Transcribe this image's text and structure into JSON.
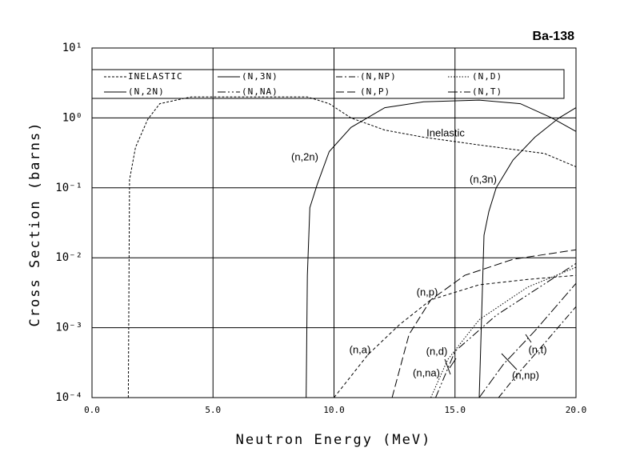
{
  "chart_data": {
    "type": "line",
    "title": "Ba-138",
    "x_label": "Neutron Energy (MeV)",
    "y_label": "Cross Section (barns)",
    "log_y": true,
    "grid": true,
    "xlim": [
      0,
      20
    ],
    "xticks": [
      {
        "value": 0,
        "label": "0.0"
      },
      {
        "value": 5,
        "label": "5.0"
      },
      {
        "value": 10,
        "label": "10.0"
      },
      {
        "value": 15,
        "label": "15.0"
      },
      {
        "value": 20,
        "label": "20.0"
      }
    ],
    "ylim": [
      0.0001,
      10
    ],
    "yticks": [
      {
        "value": 0.0001,
        "label": "10⁻⁴"
      },
      {
        "value": 0.001,
        "label": "10⁻³"
      },
      {
        "value": 0.01,
        "label": "10⁻²"
      },
      {
        "value": 0.1,
        "label": "10⁻¹"
      },
      {
        "value": 1,
        "label": "10⁰"
      },
      {
        "value": 10,
        "label": "10¹"
      }
    ],
    "series": [
      {
        "name": "INELASTIC",
        "color": "#000000",
        "dash": "3,2",
        "x": [
          1.5,
          1.55,
          1.8,
          2.3,
          2.8,
          4.1,
          6.1,
          8.9,
          9.8,
          10.7,
          12.1,
          13.7,
          16,
          18.7,
          20
        ],
        "values": [
          0.0001,
          0.13,
          0.38,
          0.95,
          1.6,
          2.0,
          2.0,
          2.0,
          1.6,
          1.0,
          0.67,
          0.53,
          0.41,
          0.31,
          0.2
        ]
      },
      {
        "name": "(N,3N)",
        "color": "#000000",
        "dash": "none",
        "x": [
          16.0,
          16.2,
          16.4,
          16.7,
          17.4,
          18.3,
          19.3,
          20
        ],
        "values": [
          0.0001,
          0.021,
          0.046,
          0.1,
          0.25,
          0.53,
          1.0,
          1.4
        ]
      },
      {
        "name": "(N,NP)",
        "color": "#000000",
        "dash": "8,3,2,3",
        "x": [
          16.8,
          17.5,
          18.7,
          20
        ],
        "values": [
          0.0001,
          0.0002,
          0.0006,
          0.002
        ]
      },
      {
        "name": "(N,D)",
        "color": "#000000",
        "dash": "1.5,2",
        "x": [
          14.0,
          14.7,
          16.0,
          18.0,
          20
        ],
        "values": [
          0.0001,
          0.00035,
          0.0013,
          0.0038,
          0.0073
        ]
      },
      {
        "name": "(N,2N)",
        "color": "#000000",
        "dash": "none",
        "x": [
          8.85,
          8.9,
          9.0,
          9.3,
          9.8,
          10.7,
          12.1,
          13.7,
          16,
          17.7,
          19,
          20
        ],
        "values": [
          0.0001,
          0.0056,
          0.052,
          0.11,
          0.33,
          0.73,
          1.4,
          1.7,
          1.8,
          1.6,
          1.0,
          0.64
        ]
      },
      {
        "name": "(N,NA)",
        "color": "#000000",
        "dash": "10,3,2,3,2,3",
        "x": [
          14.2,
          15.0,
          16.7,
          20
        ],
        "values": [
          0.0001,
          0.00046,
          0.0015,
          0.0083
        ]
      },
      {
        "name": "(N,P)",
        "color": "#000000",
        "dash": "10,4",
        "x": [
          12.4,
          13.1,
          14.0,
          15.4,
          17.4,
          20
        ],
        "values": [
          0.0001,
          0.0008,
          0.0025,
          0.0056,
          0.0095,
          0.013
        ]
      },
      {
        "name": "(N,T)",
        "color": "#000000",
        "dash": "12,3,2,3",
        "x": [
          16.0,
          17.0,
          18.3,
          20
        ],
        "values": [
          0.0001,
          0.0003,
          0.0009,
          0.0043
        ]
      },
      {
        "color": "#000000",
        "dash": "4,3",
        "x": [
          10.0,
          11.4,
          12.7,
          14.0,
          16.0,
          18.0,
          20
        ],
        "values": [
          0.0001,
          0.00041,
          0.0011,
          0.0025,
          0.0041,
          0.0049,
          0.0056
        ]
      }
    ],
    "annotations": [
      "Inelastic",
      "(n,2n)",
      "(n,3n)",
      "(n,p)",
      "(n,a)",
      "(n,d)",
      "(n,na)",
      "(n,t)",
      "(n,np)"
    ]
  }
}
